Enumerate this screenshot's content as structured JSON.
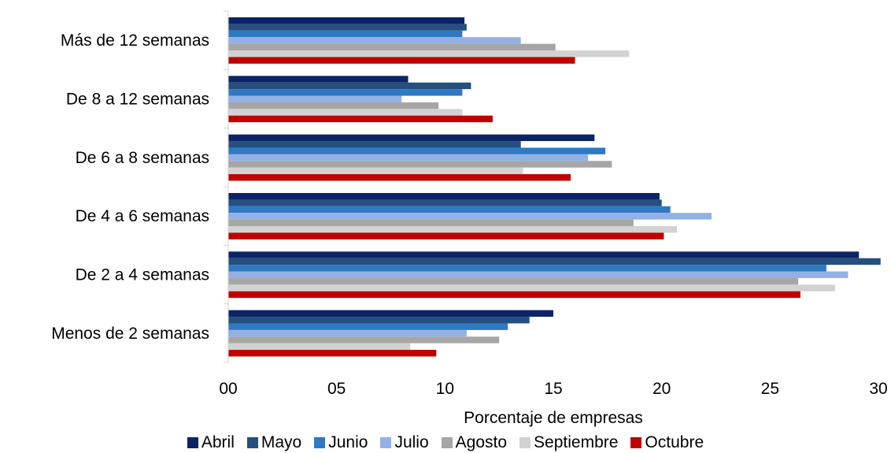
{
  "chart_data": {
    "type": "bar",
    "orientation": "horizontal",
    "categories": [
      "Menos de 2 semanas",
      "De 2 a 4 semanas",
      "De 4 a 6 semanas",
      "De 6 a 8 semanas",
      "De 8 a 12 semanas",
      "Más de 12 semanas"
    ],
    "series": [
      {
        "name": "Abril",
        "color": "#0c2466",
        "values": [
          15.0,
          29.1,
          19.9,
          16.9,
          8.3,
          10.9
        ]
      },
      {
        "name": "Mayo",
        "color": "#244f7f",
        "values": [
          13.9,
          30.1,
          20.0,
          13.5,
          11.2,
          11.0
        ]
      },
      {
        "name": "Junio",
        "color": "#2f79c2",
        "values": [
          12.9,
          27.6,
          20.4,
          17.4,
          10.8,
          10.8
        ]
      },
      {
        "name": "Julio",
        "color": "#93b1e3",
        "values": [
          11.0,
          28.6,
          22.3,
          16.6,
          8.0,
          13.5
        ]
      },
      {
        "name": "Agosto",
        "color": "#a6a6a6",
        "values": [
          12.5,
          26.3,
          18.7,
          17.7,
          9.7,
          15.1
        ]
      },
      {
        "name": "Septiembre",
        "color": "#d2d2d2",
        "values": [
          8.4,
          28.0,
          20.7,
          13.6,
          10.8,
          18.5
        ]
      },
      {
        "name": "Octubre",
        "color": "#c00000",
        "values": [
          9.6,
          26.4,
          20.1,
          15.8,
          12.2,
          16.0
        ]
      }
    ],
    "xlabel": "Porcentaje de empresas",
    "xlim": [
      0,
      30
    ],
    "xticks": [
      0,
      5,
      10,
      15,
      20,
      25,
      30
    ],
    "xtick_labels": [
      "00",
      "05",
      "10",
      "15",
      "20",
      "25",
      "30"
    ],
    "legend_position": "bottom",
    "grid": false
  }
}
